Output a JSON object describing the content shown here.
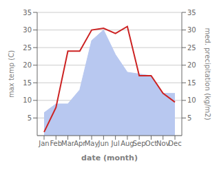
{
  "chart_data": {
    "type": "line",
    "xlabel": "date (month)",
    "ylabel": "max temp (C)",
    "y2label": "med. precipitation (kg/m2)",
    "categories": [
      "Jan",
      "Feb",
      "Mar",
      "Apr",
      "May",
      "Jun",
      "Jul",
      "Aug",
      "Sep",
      "Oct",
      "Nov",
      "Dec"
    ],
    "series": [
      {
        "type": "area",
        "axis": "y2",
        "color": "#b8c8f0",
        "values": [
          6.5,
          9,
          9,
          13,
          27,
          30,
          23,
          18,
          17.5,
          17,
          12,
          12
        ]
      },
      {
        "type": "line",
        "color": "#cc2222",
        "values": [
          1,
          8,
          24,
          24,
          30,
          30.5,
          29,
          31,
          17,
          17,
          12,
          9.5
        ]
      }
    ],
    "ylim": [
      0,
      35
    ],
    "yticks": [
      5,
      10,
      15,
      20,
      25,
      30,
      35
    ],
    "y2lim": [
      0,
      35
    ],
    "y2ticks": [
      5,
      10,
      15,
      20,
      25,
      30,
      35
    ],
    "grid": true
  }
}
